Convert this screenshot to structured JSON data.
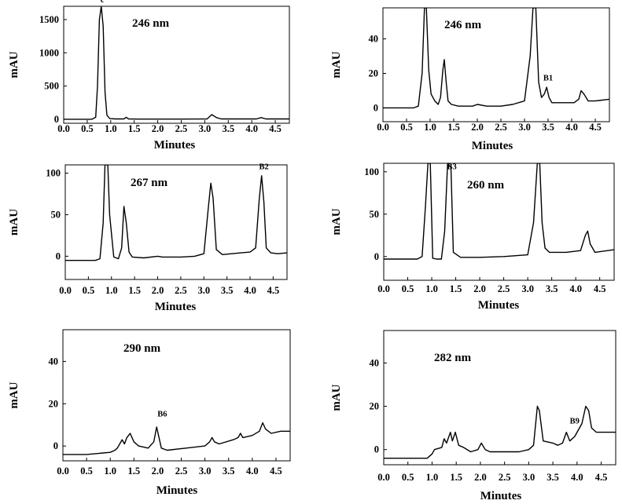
{
  "chart_data": [
    {
      "type": "line",
      "title": "246 nm",
      "xlabel": "Minutes",
      "ylabel": "mAU",
      "xlim": [
        0.0,
        4.8
      ],
      "ylim": [
        -60,
        1700
      ],
      "xticks": [
        "0.0",
        "0.5",
        "1.0",
        "1.5",
        "2.0",
        "2.5",
        "3.0",
        "3.5",
        "4.0",
        "4.5"
      ],
      "yticks": [
        0,
        500,
        1000,
        1500
      ],
      "ytick_labels": [
        "0",
        "500",
        "1000",
        "1500"
      ],
      "annotations": [
        {
          "text": "c",
          "x": 0.82,
          "y": 1760
        }
      ],
      "series": [
        {
          "x": [
            0.0,
            0.6,
            0.68,
            0.72,
            0.76,
            0.8,
            0.84,
            0.88,
            0.92,
            0.98,
            1.1,
            1.28,
            1.33,
            1.38,
            1.6,
            2.0,
            2.5,
            3.05,
            3.15,
            3.25,
            3.35,
            3.6,
            4.1,
            4.2,
            4.3,
            4.8
          ],
          "y": [
            0,
            0,
            30,
            500,
            1500,
            1700,
            1400,
            400,
            60,
            10,
            5,
            5,
            30,
            5,
            3,
            3,
            3,
            5,
            70,
            25,
            5,
            5,
            5,
            25,
            5,
            5
          ]
        }
      ]
    },
    {
      "type": "line",
      "title": "246 nm",
      "xlabel": "Minutes",
      "ylabel": "mAU",
      "xlim": [
        0.0,
        4.8
      ],
      "ylim": [
        -8,
        58
      ],
      "xticks": [
        "0.0",
        "0.5",
        "1.0",
        "1.5",
        "2.0",
        "2.5",
        "3.0",
        "3.5",
        "4.0",
        "4.5"
      ],
      "yticks": [
        0,
        20,
        40
      ],
      "ytick_labels": [
        "0",
        "20",
        "40"
      ],
      "annotations": [
        {
          "text": "B1",
          "x": 3.5,
          "y": 16
        }
      ],
      "series": [
        {
          "x": [
            0.0,
            0.65,
            0.75,
            0.83,
            0.88,
            0.92,
            0.97,
            1.02,
            1.1,
            1.17,
            1.22,
            1.27,
            1.3,
            1.34,
            1.38,
            1.45,
            1.6,
            1.9,
            2.0,
            2.2,
            2.5,
            2.75,
            3.0,
            3.12,
            3.18,
            3.24,
            3.3,
            3.36,
            3.42,
            3.47,
            3.52,
            3.58,
            3.9,
            4.05,
            4.15,
            4.2,
            4.26,
            4.35,
            4.5,
            4.8
          ],
          "y": [
            0,
            0,
            1,
            20,
            58,
            58,
            22,
            8,
            4,
            2,
            6,
            22,
            28,
            15,
            4,
            2,
            1,
            1,
            2,
            1,
            1,
            2,
            4,
            30,
            58,
            58,
            15,
            6,
            8,
            12,
            6,
            3,
            3,
            3,
            5,
            10,
            8,
            4,
            4,
            5
          ]
        }
      ]
    },
    {
      "type": "line",
      "title": "267 nm",
      "xlabel": "Minutes",
      "ylabel": "mAU",
      "xlim": [
        0.0,
        4.8
      ],
      "ylim": [
        -28,
        110
      ],
      "xticks": [
        "0.0",
        "0.5",
        "1.0",
        "1.5",
        "2.0",
        "2.5",
        "3.0",
        "3.5",
        "4.0",
        "4.5"
      ],
      "yticks": [
        0,
        50,
        100
      ],
      "ytick_labels": [
        "0",
        "50",
        "100"
      ],
      "annotations": [
        {
          "text": "B2",
          "x": 4.3,
          "y": 105
        }
      ],
      "series": [
        {
          "x": [
            0.0,
            0.65,
            0.75,
            0.82,
            0.86,
            0.92,
            0.96,
            1.05,
            1.15,
            1.22,
            1.27,
            1.32,
            1.38,
            1.45,
            1.7,
            2.0,
            2.1,
            2.5,
            2.8,
            3.0,
            3.1,
            3.15,
            3.2,
            3.27,
            3.4,
            3.6,
            3.8,
            4.0,
            4.12,
            4.2,
            4.25,
            4.3,
            4.35,
            4.45,
            4.6,
            4.8
          ],
          "y": [
            -5,
            -5,
            -3,
            40,
            110,
            110,
            50,
            -1,
            -3,
            10,
            60,
            40,
            5,
            -1,
            -2,
            0,
            -1,
            -1,
            0,
            3,
            60,
            88,
            70,
            8,
            2,
            3,
            4,
            5,
            10,
            70,
            97,
            65,
            10,
            4,
            3,
            4
          ]
        }
      ]
    },
    {
      "type": "line",
      "title": "260 nm",
      "xlabel": "Minutes",
      "ylabel": "mAU",
      "xlim": [
        0.0,
        4.8
      ],
      "ylim": [
        -28,
        110
      ],
      "xticks": [
        "0.0",
        "0.5",
        "1.0",
        "1.5",
        "2.0",
        "2.5",
        "3.0",
        "3.5",
        "4.0",
        "4.5"
      ],
      "yticks": [
        0,
        50,
        100
      ],
      "ytick_labels": [
        "0",
        "50",
        "100"
      ],
      "annotations": [
        {
          "text": "B3",
          "x": 1.42,
          "y": 103
        }
      ],
      "series": [
        {
          "x": [
            0.0,
            0.7,
            0.8,
            0.87,
            0.92,
            0.97,
            1.02,
            1.1,
            1.2,
            1.27,
            1.33,
            1.4,
            1.45,
            1.6,
            2.0,
            2.5,
            3.0,
            3.12,
            3.2,
            3.25,
            3.3,
            3.36,
            3.45,
            3.8,
            4.1,
            4.2,
            4.25,
            4.3,
            4.4,
            4.8
          ],
          "y": [
            -3,
            -3,
            0,
            60,
            110,
            110,
            -2,
            -3,
            -3,
            30,
            110,
            105,
            5,
            -1,
            -1,
            0,
            2,
            40,
            110,
            110,
            40,
            10,
            5,
            5,
            7,
            25,
            30,
            15,
            5,
            8
          ]
        }
      ]
    },
    {
      "type": "line",
      "title": "290 nm",
      "xlabel": "Minutes",
      "ylabel": "mAU",
      "xlim": [
        0.0,
        4.8
      ],
      "ylim": [
        -7,
        55
      ],
      "xticks": [
        "0.0",
        "0.5",
        "1.0",
        "1.5",
        "2.0",
        "2.5",
        "3.0",
        "3.5",
        "4.0",
        "4.5"
      ],
      "yticks": [
        0,
        20,
        40
      ],
      "ytick_labels": [
        "0",
        "20",
        "40"
      ],
      "annotations": [
        {
          "text": "B6",
          "x": 2.1,
          "y": 14
        }
      ],
      "series": [
        {
          "x": [
            0.0,
            0.5,
            1.0,
            1.1,
            1.15,
            1.25,
            1.3,
            1.35,
            1.42,
            1.5,
            1.6,
            1.8,
            1.92,
            1.98,
            2.02,
            2.08,
            2.2,
            2.6,
            3.0,
            3.1,
            3.15,
            3.2,
            3.3,
            3.6,
            3.7,
            3.75,
            3.8,
            4.0,
            4.15,
            4.22,
            4.28,
            4.4,
            4.6,
            4.8
          ],
          "y": [
            -4,
            -4,
            -3,
            -2,
            -1,
            3,
            1,
            4,
            6,
            2,
            0,
            -1,
            2,
            9,
            5,
            -1,
            -2,
            -1,
            0,
            2,
            4,
            2,
            1,
            3,
            4,
            6,
            4,
            5,
            7,
            11,
            8,
            6,
            7,
            7
          ]
        }
      ]
    },
    {
      "type": "line",
      "title": "282 nm",
      "xlabel": "Minutes",
      "ylabel": "mAU",
      "xlim": [
        0.0,
        4.8
      ],
      "ylim": [
        -7,
        55
      ],
      "xticks": [
        "0.0",
        "0.5",
        "1.0",
        "1.5",
        "2.0",
        "2.5",
        "3.0",
        "3.5",
        "4.0",
        "4.5"
      ],
      "yticks": [
        0,
        20,
        40
      ],
      "ytick_labels": [
        "0",
        "20",
        "40"
      ],
      "annotations": [
        {
          "text": "B9",
          "x": 3.95,
          "y": 12
        }
      ],
      "series": [
        {
          "x": [
            0.0,
            0.5,
            0.9,
            1.0,
            1.05,
            1.2,
            1.25,
            1.3,
            1.38,
            1.42,
            1.48,
            1.55,
            1.65,
            1.8,
            1.95,
            2.02,
            2.1,
            2.2,
            2.4,
            2.8,
            3.0,
            3.1,
            3.18,
            3.22,
            3.3,
            3.5,
            3.6,
            3.7,
            3.78,
            3.85,
            3.95,
            4.1,
            4.18,
            4.24,
            4.3,
            4.4,
            4.5,
            4.8
          ],
          "y": [
            -4,
            -4,
            -4,
            -2,
            0,
            1,
            5,
            3,
            8,
            4,
            8,
            2,
            1,
            -1,
            0,
            3,
            0,
            -1,
            -1,
            -1,
            0,
            2,
            20,
            18,
            4,
            3,
            2,
            3,
            8,
            4,
            6,
            12,
            20,
            18,
            10,
            8,
            8,
            8
          ]
        }
      ]
    }
  ]
}
